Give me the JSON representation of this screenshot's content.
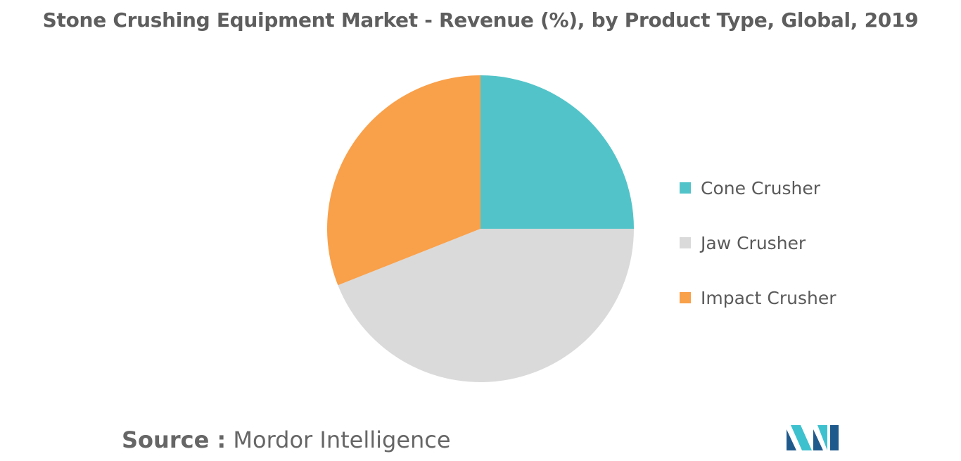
{
  "chart_data": {
    "type": "pie",
    "title": "Stone Crushing Equipment Market - Revenue (%), by Product Type, Global, 2019",
    "slices": [
      {
        "label": "Cone Crusher",
        "value": 25,
        "color": "#52c4c9"
      },
      {
        "label": "Jaw Crusher",
        "value": 44,
        "color": "#dadada"
      },
      {
        "label": "Impact Crusher",
        "value": 31,
        "color": "#f9a04a"
      }
    ],
    "start_angle_deg": 0,
    "direction": "clockwise",
    "legend_position": "right"
  },
  "source": {
    "label": "Source :",
    "value": "Mordor Intelligence"
  },
  "logo": {
    "colors": [
      "#1f5a8c",
      "#3ec1cf"
    ]
  }
}
